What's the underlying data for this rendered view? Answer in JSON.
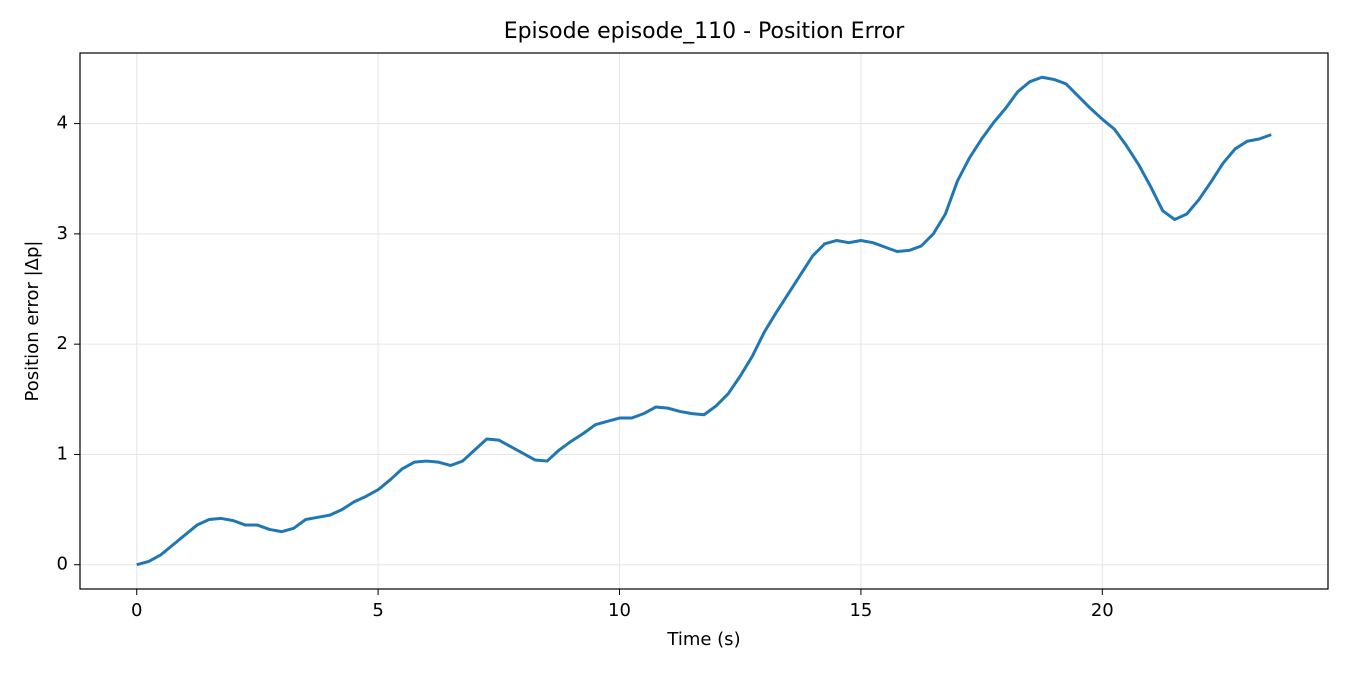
{
  "chart_data": {
    "type": "line",
    "title": "Episode episode_110 - Position Error",
    "x_label": "Time (s)",
    "y_label": "Position error |Δp|",
    "x": [
      0,
      0.25,
      0.5,
      0.75,
      1,
      1.25,
      1.5,
      1.75,
      2,
      2.25,
      2.5,
      2.75,
      3,
      3.25,
      3.5,
      3.75,
      4,
      4.25,
      4.5,
      4.75,
      5,
      5.25,
      5.5,
      5.75,
      6,
      6.25,
      6.5,
      6.75,
      7,
      7.25,
      7.5,
      7.75,
      8,
      8.25,
      8.5,
      8.75,
      9,
      9.25,
      9.5,
      9.75,
      10,
      10.25,
      10.5,
      10.75,
      11,
      11.25,
      11.5,
      11.75,
      12,
      12.25,
      12.5,
      12.75,
      13,
      13.25,
      13.5,
      13.75,
      14,
      14.25,
      14.5,
      14.75,
      15,
      15.25,
      15.5,
      15.75,
      16,
      16.25,
      16.5,
      16.75,
      17,
      17.25,
      17.5,
      17.75,
      18,
      18.25,
      18.5,
      18.75,
      19,
      19.25,
      19.5,
      19.75,
      20,
      20.25,
      20.5,
      20.75,
      21,
      21.25,
      21.5,
      21.75,
      22,
      22.25,
      22.5,
      22.75,
      23,
      23.25,
      23.5
    ],
    "series": [
      {
        "name": "Position error",
        "color": "#1f77b4",
        "values": [
          0,
          0.03,
          0.09,
          0.18,
          0.27,
          0.36,
          0.41,
          0.42,
          0.4,
          0.36,
          0.36,
          0.32,
          0.3,
          0.33,
          0.41,
          0.43,
          0.45,
          0.5,
          0.57,
          0.62,
          0.68,
          0.77,
          0.87,
          0.93,
          0.94,
          0.93,
          0.9,
          0.94,
          1.04,
          1.14,
          1.13,
          1.07,
          1.01,
          0.95,
          0.94,
          1.04,
          1.12,
          1.19,
          1.27,
          1.3,
          1.33,
          1.33,
          1.37,
          1.43,
          1.42,
          1.39,
          1.37,
          1.36,
          1.44,
          1.55,
          1.71,
          1.89,
          2.11,
          2.29,
          2.46,
          2.63,
          2.8,
          2.91,
          2.94,
          2.92,
          2.94,
          2.92,
          2.88,
          2.84,
          2.85,
          2.89,
          3.0,
          3.18,
          3.48,
          3.69,
          3.86,
          4.01,
          4.14,
          4.29,
          4.38,
          4.42,
          4.4,
          4.36,
          4.25,
          4.14,
          4.04,
          3.95,
          3.8,
          3.63,
          3.43,
          3.21,
          3.13,
          3.18,
          3.31,
          3.47,
          3.64,
          3.77,
          3.84,
          3.86,
          3.9
        ]
      }
    ],
    "xlim": [
      -1.175,
      24.675
    ],
    "ylim": [
      -0.22,
      4.64
    ],
    "xticks": [
      0,
      5,
      10,
      15,
      20
    ],
    "yticks": [
      0,
      1,
      2,
      3,
      4
    ],
    "grid": true
  }
}
